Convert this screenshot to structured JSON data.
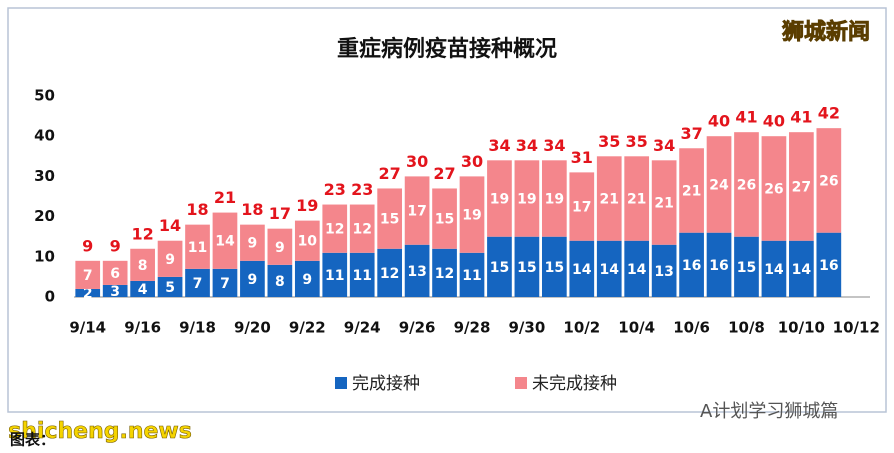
{
  "chart_data": {
    "type": "stacked_bar",
    "title": "重症病例疫苗接种概况",
    "categories": [
      "9/14",
      null,
      "9/16",
      null,
      "9/18",
      null,
      "9/20",
      null,
      "9/22",
      null,
      "9/24",
      null,
      "9/26",
      null,
      "9/28",
      null,
      "9/30",
      null,
      "10/2",
      null,
      "10/4",
      null,
      "10/6",
      null,
      "10/8",
      null,
      "10/10",
      null,
      "10/12"
    ],
    "series": [
      {
        "name": "完成接种",
        "color": "#1565c0",
        "values": [
          2,
          3,
          4,
          5,
          7,
          7,
          9,
          8,
          9,
          11,
          11,
          12,
          13,
          12,
          11,
          15,
          15,
          15,
          14,
          14,
          14,
          13,
          16,
          16,
          15,
          14,
          14,
          16,
          null
        ]
      },
      {
        "name": "未完成接种",
        "color": "#f4868c",
        "values": [
          7,
          6,
          8,
          9,
          11,
          14,
          9,
          9,
          10,
          12,
          12,
          15,
          17,
          15,
          19,
          19,
          19,
          19,
          17,
          21,
          21,
          21,
          21,
          24,
          26,
          26,
          27,
          26,
          null
        ]
      }
    ],
    "totals": [
      9,
      9,
      12,
      14,
      18,
      21,
      18,
      17,
      19,
      23,
      23,
      27,
      30,
      27,
      30,
      34,
      34,
      34,
      31,
      35,
      35,
      34,
      37,
      40,
      41,
      40,
      41,
      42,
      null
    ],
    "totals_color": "#e3141c",
    "ylim": [
      0,
      50
    ],
    "yticks": [
      0,
      10,
      20,
      30,
      40,
      50
    ],
    "legend": "bottom"
  },
  "watermarks": {
    "top_right": "狮城新闻",
    "bottom_left": "shicheng.news",
    "bottom_right": "A计划学习狮城篇",
    "caption": "图表："
  }
}
